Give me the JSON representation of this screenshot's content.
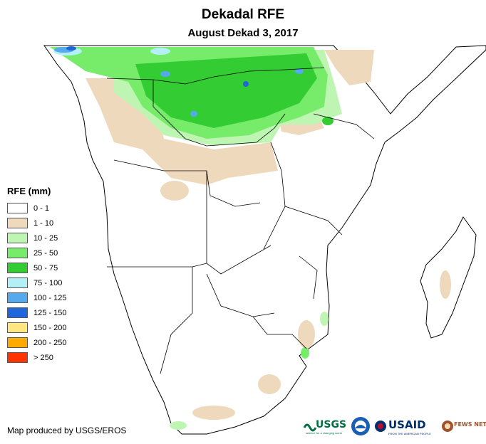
{
  "title": "Dekadal RFE",
  "subtitle": "August Dekad 3, 2017",
  "legend": {
    "title": "RFE (mm)",
    "items": [
      {
        "label": "0 - 1",
        "color": "#ffffff"
      },
      {
        "label": "1 - 10",
        "color": "#eed9bd"
      },
      {
        "label": "10 - 25",
        "color": "#bff5b3"
      },
      {
        "label": "25 - 50",
        "color": "#77ec6b"
      },
      {
        "label": "50 - 75",
        "color": "#33cc33"
      },
      {
        "label": "75 - 100",
        "color": "#b3f0f5"
      },
      {
        "label": "100 - 125",
        "color": "#55aaee"
      },
      {
        "label": "125 - 150",
        "color": "#1f66dd"
      },
      {
        "label": "150 - 200",
        "color": "#ffe680"
      },
      {
        "label": "200 - 250",
        "color": "#ffaa00"
      },
      {
        "label": "> 250",
        "color": "#ff3300"
      }
    ]
  },
  "credit": "Map produced by USGS/EROS",
  "logos": {
    "usgs": "USGS",
    "usgs_tagline": "science for a changing world",
    "usaid": "USAID",
    "usaid_tagline": "FROM THE AMERICAN PEOPLE",
    "fewsnet": "FEWS NET"
  }
}
